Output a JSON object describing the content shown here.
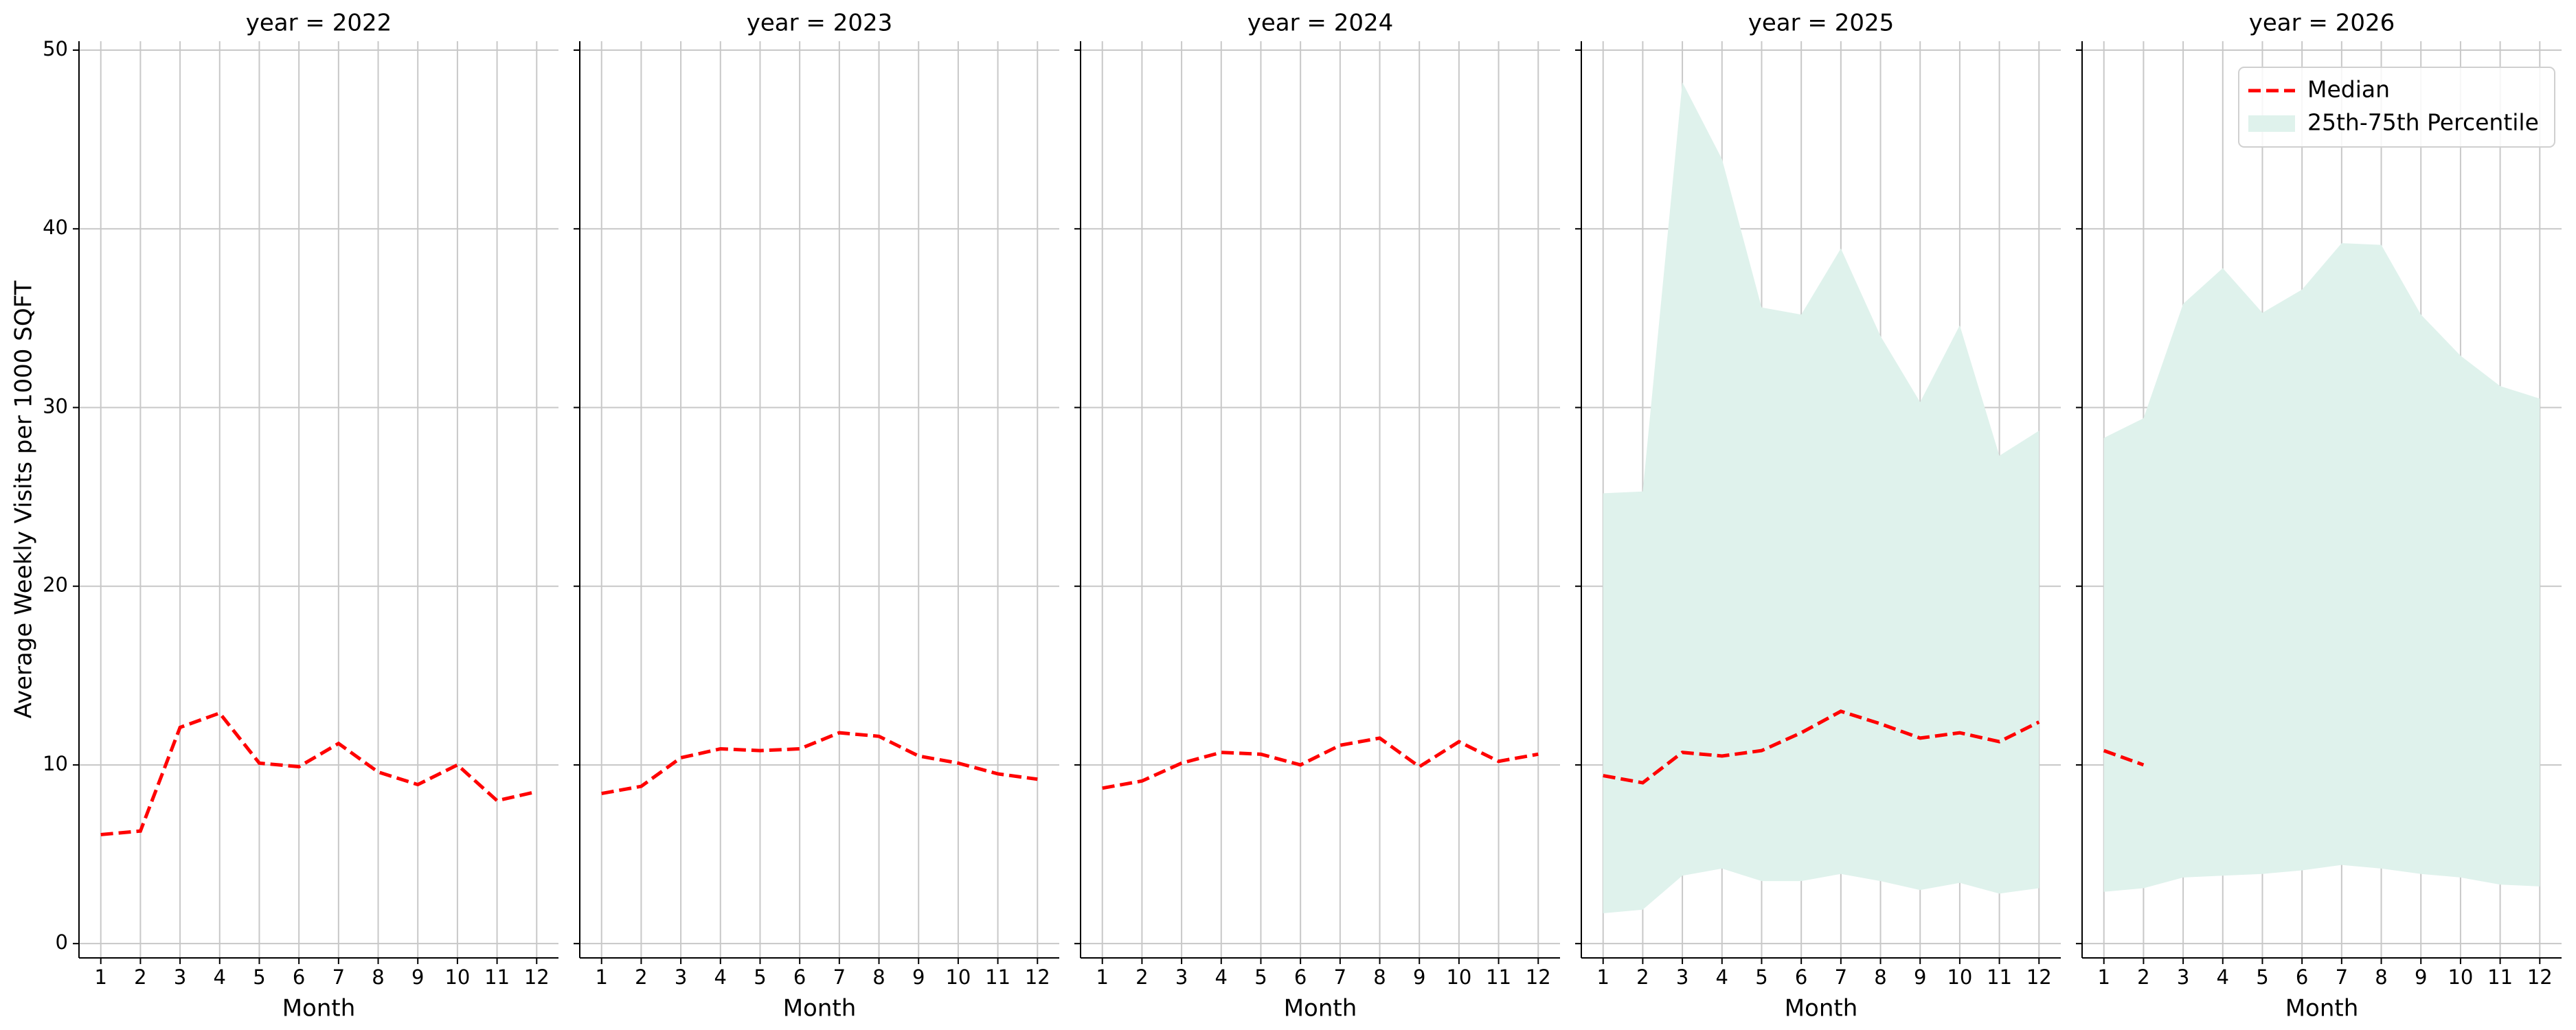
{
  "chart_data": [
    {
      "type": "line",
      "title": "year = 2022",
      "xlabel": "Month",
      "ylabel": "Average Weekly Visits per 1000 SQFT",
      "x": [
        1,
        2,
        3,
        4,
        5,
        6,
        7,
        8,
        9,
        10,
        11,
        12
      ],
      "xlim": [
        0.45,
        12.55
      ],
      "xticks": [
        1,
        2,
        3,
        4,
        5,
        6,
        7,
        8,
        9,
        10,
        11,
        12
      ],
      "ylim": [
        -0.8,
        50.5
      ],
      "yticks": [
        0,
        10,
        20,
        30,
        40,
        50
      ],
      "grid": true,
      "series": [
        {
          "color": "#ff0000",
          "values": [
            6.1,
            6.3,
            12.1,
            12.9,
            10.1,
            9.9,
            11.2,
            9.6,
            8.9,
            10.0,
            8.0,
            8.5
          ]
        }
      ]
    },
    {
      "type": "line",
      "title": "year = 2023",
      "xlabel": "Month",
      "x": [
        1,
        2,
        3,
        4,
        5,
        6,
        7,
        8,
        9,
        10,
        11,
        12
      ],
      "xlim": [
        0.45,
        12.55
      ],
      "xticks": [
        1,
        2,
        3,
        4,
        5,
        6,
        7,
        8,
        9,
        10,
        11,
        12
      ],
      "ylim": [
        -0.8,
        50.5
      ],
      "yticks": [
        0,
        10,
        20,
        30,
        40,
        50
      ],
      "grid": true,
      "series": [
        {
          "color": "#ff0000",
          "values": [
            8.4,
            8.8,
            10.4,
            10.9,
            10.8,
            10.9,
            11.8,
            11.6,
            10.5,
            10.1,
            9.5,
            9.2
          ]
        }
      ]
    },
    {
      "type": "line",
      "title": "year = 2024",
      "xlabel": "Month",
      "x": [
        1,
        2,
        3,
        4,
        5,
        6,
        7,
        8,
        9,
        10,
        11,
        12
      ],
      "xlim": [
        0.45,
        12.55
      ],
      "xticks": [
        1,
        2,
        3,
        4,
        5,
        6,
        7,
        8,
        9,
        10,
        11,
        12
      ],
      "ylim": [
        -0.8,
        50.5
      ],
      "yticks": [
        0,
        10,
        20,
        30,
        40,
        50
      ],
      "grid": true,
      "series": [
        {
          "color": "#ff0000",
          "values": [
            8.7,
            9.1,
            10.1,
            10.7,
            10.6,
            10.0,
            11.1,
            11.5,
            9.9,
            11.3,
            10.2,
            10.6
          ]
        }
      ]
    },
    {
      "type": "line",
      "title": "year = 2025",
      "xlabel": "Month",
      "x": [
        1,
        2,
        3,
        4,
        5,
        6,
        7,
        8,
        9,
        10,
        11,
        12
      ],
      "xlim": [
        0.45,
        12.55
      ],
      "xticks": [
        1,
        2,
        3,
        4,
        5,
        6,
        7,
        8,
        9,
        10,
        11,
        12
      ],
      "ylim": [
        -0.8,
        50.5
      ],
      "yticks": [
        0,
        10,
        20,
        30,
        40,
        50
      ],
      "grid": true,
      "bands": [
        {
          "color": "#dff2ec",
          "lower": [
            1.7,
            1.9,
            3.8,
            4.2,
            3.5,
            3.5,
            3.9,
            3.5,
            3.0,
            3.4,
            2.8,
            3.1
          ],
          "upper": [
            25.2,
            25.3,
            48.2,
            43.9,
            35.6,
            35.2,
            38.9,
            34.0,
            30.3,
            34.6,
            27.3,
            28.7
          ]
        }
      ],
      "series": [
        {
          "color": "#ff0000",
          "values": [
            9.4,
            9.0,
            10.7,
            10.5,
            10.8,
            11.8,
            13.0,
            12.3,
            11.5,
            11.8,
            11.3,
            12.4
          ]
        }
      ]
    },
    {
      "type": "line",
      "title": "year = 2026",
      "xlabel": "Month",
      "x": [
        1,
        2,
        3,
        4,
        5,
        6,
        7,
        8,
        9,
        10,
        11,
        12
      ],
      "xlim": [
        0.45,
        12.55
      ],
      "xticks": [
        1,
        2,
        3,
        4,
        5,
        6,
        7,
        8,
        9,
        10,
        11,
        12
      ],
      "ylim": [
        -0.8,
        50.5
      ],
      "yticks": [
        0,
        10,
        20,
        30,
        40,
        50
      ],
      "grid": true,
      "legend": "upper right",
      "bands": [
        {
          "name": "25th-75th Percentile",
          "color": "#dff2ec",
          "lower": [
            2.9,
            3.1,
            3.7,
            3.8,
            3.9,
            4.1,
            4.4,
            4.2,
            3.9,
            3.7,
            3.3,
            3.2
          ],
          "upper": [
            28.3,
            29.4,
            35.8,
            37.8,
            35.3,
            36.6,
            39.2,
            39.1,
            35.2,
            32.9,
            31.2,
            30.5
          ]
        }
      ],
      "series": [
        {
          "name": "Median",
          "color": "#ff0000",
          "values": [
            10.8,
            10.0,
            null,
            null,
            null,
            null,
            null,
            null,
            null,
            null,
            null,
            null
          ]
        }
      ]
    }
  ]
}
